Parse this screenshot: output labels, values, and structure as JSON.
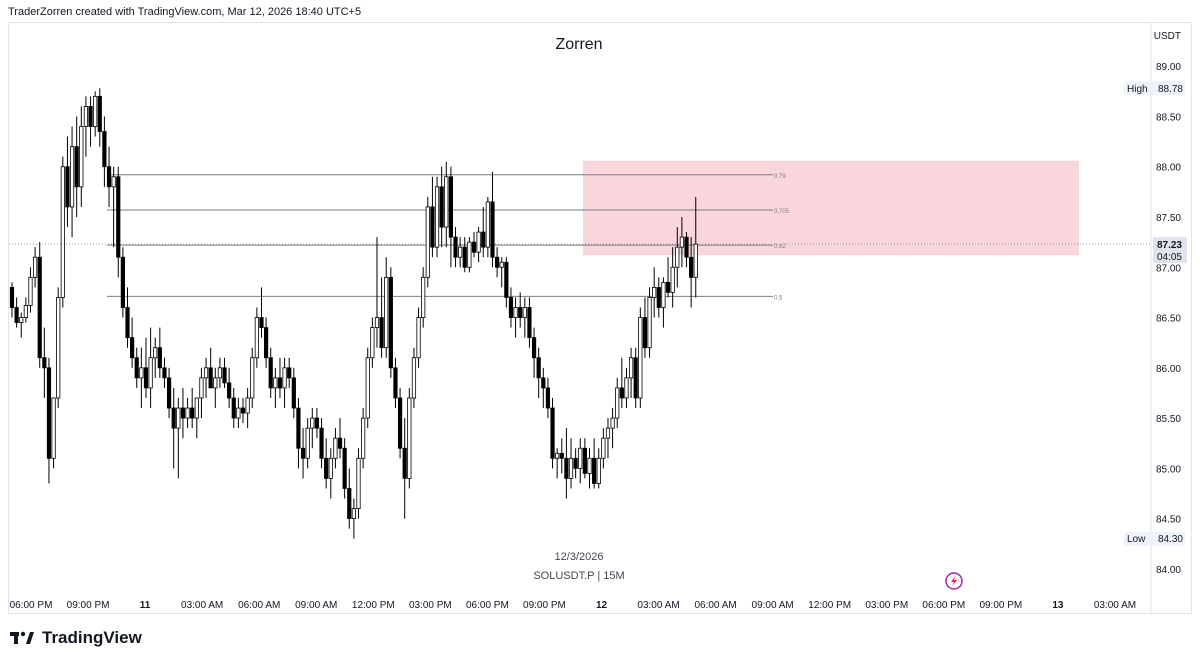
{
  "header": {
    "attribution": "TraderZorren created with TradingView.com, Mar 12, 2026 18:40 UTC+5"
  },
  "footer": {
    "brand": "TradingView"
  },
  "chart_data": {
    "type": "candlestick",
    "title": "Zorren",
    "watermark_date": "12/3/2026",
    "symbol_line": "SOLUSDT.P | 15M",
    "currency": "USDT",
    "ylim": [
      83.8,
      89.35
    ],
    "y_ticks": [
      "89.00",
      "88.50",
      "88.00",
      "87.50",
      "87.00",
      "86.50",
      "86.00",
      "85.50",
      "85.00",
      "84.50",
      "84.00"
    ],
    "x_ticks": [
      "06:00 PM",
      "09:00 PM",
      "11",
      "03:00 AM",
      "06:00 AM",
      "09:00 AM",
      "12:00 PM",
      "03:00 PM",
      "06:00 PM",
      "09:00 PM",
      "12",
      "03:00 AM",
      "06:00 AM",
      "09:00 AM",
      "12:00 PM",
      "03:00 PM",
      "06:00 PM",
      "09:00 PM",
      "13",
      "03:00 AM"
    ],
    "bold_x_ticks": [
      "11",
      "12",
      "13"
    ],
    "high": {
      "label": "High",
      "value": "88.78"
    },
    "low": {
      "label": "Low",
      "value": "84.30"
    },
    "last": {
      "price": "87.23",
      "countdown": "04:05"
    },
    "fib_levels": [
      {
        "label": "0.79",
        "price": 87.92
      },
      {
        "label": "0.705",
        "price": 87.57
      },
      {
        "label": "0.62",
        "price": 87.22
      },
      {
        "label": "0.5",
        "price": 86.71
      }
    ],
    "zone": {
      "top": 88.06,
      "bottom": 87.12,
      "color": "#f8cfd6"
    },
    "colors": {
      "up": "#ffffff",
      "down": "#000000",
      "wick": "#000000"
    },
    "candles_ohlc": [
      [
        86.8,
        86.85,
        86.5,
        86.6
      ],
      [
        86.6,
        86.7,
        86.4,
        86.45
      ],
      [
        86.45,
        86.55,
        86.3,
        86.5
      ],
      [
        86.5,
        86.7,
        86.45,
        86.62
      ],
      [
        86.62,
        87.0,
        86.55,
        86.9
      ],
      [
        86.9,
        87.2,
        86.8,
        87.1
      ],
      [
        87.1,
        87.25,
        86.0,
        86.1
      ],
      [
        86.1,
        86.4,
        85.7,
        86.0
      ],
      [
        86.0,
        86.1,
        84.85,
        85.1
      ],
      [
        85.1,
        85.6,
        85.0,
        85.7
      ],
      [
        85.7,
        86.8,
        85.6,
        86.7
      ],
      [
        86.7,
        88.1,
        86.6,
        88.0
      ],
      [
        88.0,
        88.3,
        87.4,
        87.6
      ],
      [
        87.6,
        88.4,
        87.3,
        88.2
      ],
      [
        88.2,
        88.5,
        87.5,
        87.8
      ],
      [
        87.8,
        88.6,
        87.6,
        88.4
      ],
      [
        88.4,
        88.7,
        88.1,
        88.6
      ],
      [
        88.6,
        88.7,
        88.2,
        88.4
      ],
      [
        88.4,
        88.75,
        88.3,
        88.7
      ],
      [
        88.7,
        88.78,
        88.2,
        88.35
      ],
      [
        88.35,
        88.5,
        87.8,
        88.0
      ],
      [
        88.0,
        88.2,
        87.6,
        87.8
      ],
      [
        87.8,
        88.0,
        87.2,
        87.9
      ],
      [
        87.9,
        88.0,
        86.9,
        87.1
      ],
      [
        87.1,
        87.2,
        86.5,
        86.6
      ],
      [
        86.6,
        86.8,
        86.2,
        86.3
      ],
      [
        86.3,
        86.5,
        86.0,
        86.1
      ],
      [
        86.1,
        86.2,
        85.8,
        85.9
      ],
      [
        85.9,
        86.2,
        85.6,
        86.0
      ],
      [
        86.0,
        86.3,
        85.7,
        85.8
      ],
      [
        85.8,
        86.4,
        85.6,
        86.1
      ],
      [
        86.1,
        86.3,
        85.9,
        86.2
      ],
      [
        86.2,
        86.4,
        85.9,
        86.0
      ],
      [
        86.0,
        86.1,
        85.8,
        85.9
      ],
      [
        85.9,
        86.0,
        85.5,
        85.6
      ],
      [
        85.6,
        85.8,
        85.0,
        85.4
      ],
      [
        85.4,
        85.7,
        84.9,
        85.6
      ],
      [
        85.6,
        85.8,
        85.3,
        85.5
      ],
      [
        85.5,
        85.7,
        85.4,
        85.6
      ],
      [
        85.6,
        85.8,
        85.4,
        85.5
      ],
      [
        85.5,
        85.7,
        85.3,
        85.7
      ],
      [
        85.7,
        86.0,
        85.5,
        85.9
      ],
      [
        85.9,
        86.1,
        85.7,
        86.0
      ],
      [
        86.0,
        86.2,
        85.8,
        85.8
      ],
      [
        85.8,
        86.0,
        85.6,
        85.9
      ],
      [
        85.9,
        86.1,
        85.8,
        86.0
      ],
      [
        86.0,
        86.1,
        85.8,
        85.85
      ],
      [
        85.85,
        86.0,
        85.6,
        85.7
      ],
      [
        85.7,
        85.8,
        85.4,
        85.5
      ],
      [
        85.5,
        85.7,
        85.4,
        85.6
      ],
      [
        85.6,
        85.7,
        85.45,
        85.55
      ],
      [
        85.55,
        85.8,
        85.4,
        85.7
      ],
      [
        85.7,
        86.2,
        85.6,
        86.1
      ],
      [
        86.1,
        86.6,
        86.0,
        86.5
      ],
      [
        86.5,
        86.8,
        86.3,
        86.4
      ],
      [
        86.4,
        86.5,
        86.0,
        86.1
      ],
      [
        86.1,
        86.2,
        85.7,
        85.8
      ],
      [
        85.8,
        86.0,
        85.6,
        85.9
      ],
      [
        85.9,
        86.1,
        85.7,
        85.8
      ],
      [
        85.8,
        86.1,
        85.6,
        86.0
      ],
      [
        86.0,
        86.1,
        85.8,
        85.9
      ],
      [
        85.9,
        86.0,
        85.5,
        85.6
      ],
      [
        85.6,
        85.7,
        85.0,
        85.2
      ],
      [
        85.2,
        85.4,
        84.9,
        85.1
      ],
      [
        85.1,
        85.5,
        85.0,
        85.4
      ],
      [
        85.4,
        85.6,
        85.2,
        85.5
      ],
      [
        85.5,
        85.6,
        85.3,
        85.4
      ],
      [
        85.4,
        85.5,
        85.0,
        85.1
      ],
      [
        85.1,
        85.3,
        84.8,
        84.9
      ],
      [
        84.9,
        85.2,
        84.7,
        85.1
      ],
      [
        85.1,
        85.4,
        85.0,
        85.3
      ],
      [
        85.3,
        85.5,
        85.1,
        85.2
      ],
      [
        85.2,
        85.3,
        84.7,
        84.8
      ],
      [
        84.8,
        85.0,
        84.4,
        84.5
      ],
      [
        84.5,
        84.7,
        84.3,
        84.6
      ],
      [
        84.6,
        85.2,
        84.5,
        85.1
      ],
      [
        85.1,
        85.6,
        85.0,
        85.5
      ],
      [
        85.5,
        86.2,
        85.4,
        86.1
      ],
      [
        86.1,
        86.5,
        86.0,
        86.4
      ],
      [
        86.4,
        87.3,
        86.2,
        86.5
      ],
      [
        86.5,
        86.9,
        86.1,
        86.2
      ],
      [
        86.2,
        87.1,
        86.1,
        86.9
      ],
      [
        86.9,
        87.0,
        85.9,
        86.0
      ],
      [
        86.0,
        86.1,
        85.6,
        85.7
      ],
      [
        85.7,
        85.8,
        85.1,
        85.2
      ],
      [
        85.2,
        85.5,
        84.5,
        84.9
      ],
      [
        84.9,
        85.8,
        84.8,
        85.7
      ],
      [
        85.7,
        86.2,
        85.6,
        86.1
      ],
      [
        86.1,
        86.6,
        86.0,
        86.5
      ],
      [
        86.5,
        87.0,
        86.4,
        86.9
      ],
      [
        86.9,
        87.7,
        86.8,
        87.6
      ],
      [
        87.6,
        87.9,
        87.1,
        87.2
      ],
      [
        87.2,
        87.9,
        87.1,
        87.8
      ],
      [
        87.8,
        88.0,
        87.2,
        87.4
      ],
      [
        87.4,
        88.05,
        87.2,
        87.9
      ],
      [
        87.9,
        88.0,
        87.0,
        87.3
      ],
      [
        87.3,
        87.4,
        87.0,
        87.1
      ],
      [
        87.1,
        87.3,
        87.0,
        87.2
      ],
      [
        87.2,
        87.3,
        86.95,
        87.0
      ],
      [
        87.0,
        87.3,
        86.95,
        87.25
      ],
      [
        87.25,
        87.35,
        87.1,
        87.15
      ],
      [
        87.15,
        87.4,
        87.05,
        87.35
      ],
      [
        87.35,
        87.6,
        87.1,
        87.2
      ],
      [
        87.2,
        87.7,
        87.1,
        87.65
      ],
      [
        87.65,
        87.95,
        87.0,
        87.1
      ],
      [
        87.1,
        87.2,
        86.9,
        87.0
      ],
      [
        87.0,
        87.1,
        86.8,
        87.05
      ],
      [
        87.05,
        87.1,
        86.6,
        86.7
      ],
      [
        86.7,
        86.8,
        86.4,
        86.5
      ],
      [
        86.5,
        86.7,
        86.3,
        86.6
      ],
      [
        86.6,
        86.75,
        86.4,
        86.5
      ],
      [
        86.5,
        86.7,
        86.3,
        86.6
      ],
      [
        86.6,
        86.7,
        86.2,
        86.3
      ],
      [
        86.3,
        86.4,
        85.9,
        86.1
      ],
      [
        86.1,
        86.2,
        85.7,
        85.9
      ],
      [
        85.9,
        86.0,
        85.6,
        85.8
      ],
      [
        85.8,
        85.9,
        85.5,
        85.6
      ],
      [
        85.6,
        85.7,
        85.0,
        85.1
      ],
      [
        85.1,
        85.2,
        84.9,
        85.15
      ],
      [
        85.15,
        85.3,
        84.95,
        85.1
      ],
      [
        85.1,
        85.4,
        84.7,
        84.9
      ],
      [
        84.9,
        85.3,
        84.8,
        85.1
      ],
      [
        85.1,
        85.2,
        84.9,
        85.0
      ],
      [
        85.0,
        85.3,
        84.85,
        85.2
      ],
      [
        85.2,
        85.3,
        84.9,
        84.95
      ],
      [
        84.95,
        85.2,
        84.8,
        85.1
      ],
      [
        85.1,
        85.3,
        84.8,
        84.85
      ],
      [
        84.85,
        85.2,
        84.8,
        85.1
      ],
      [
        85.1,
        85.4,
        85.0,
        85.3
      ],
      [
        85.3,
        85.5,
        85.1,
        85.4
      ],
      [
        85.4,
        85.6,
        85.2,
        85.5
      ],
      [
        85.5,
        85.9,
        85.4,
        85.8
      ],
      [
        85.8,
        86.1,
        85.6,
        85.7
      ],
      [
        85.7,
        86.0,
        85.6,
        85.9
      ],
      [
        85.9,
        86.2,
        85.7,
        86.1
      ],
      [
        86.1,
        86.2,
        85.6,
        85.7
      ],
      [
        85.7,
        86.6,
        85.6,
        86.5
      ],
      [
        86.5,
        86.7,
        86.1,
        86.2
      ],
      [
        86.2,
        86.8,
        86.1,
        86.7
      ],
      [
        86.7,
        87.0,
        86.5,
        86.8
      ],
      [
        86.8,
        86.9,
        86.5,
        86.6
      ],
      [
        86.6,
        86.9,
        86.4,
        86.85
      ],
      [
        86.85,
        87.1,
        86.7,
        86.75
      ],
      [
        86.75,
        87.2,
        86.6,
        87.0
      ],
      [
        87.0,
        87.4,
        86.8,
        87.2
      ],
      [
        87.2,
        87.5,
        87.0,
        87.3
      ],
      [
        87.3,
        87.35,
        87.0,
        87.1
      ],
      [
        87.1,
        87.3,
        86.6,
        86.9
      ],
      [
        86.9,
        87.7,
        86.7,
        87.23
      ]
    ]
  }
}
